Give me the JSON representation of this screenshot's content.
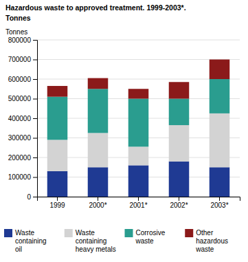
{
  "chart_data": {
    "type": "bar",
    "stacked": true,
    "title": "Hazardous waste to approved treatment. 1999-2003*.",
    "subtitle": "Tonnes",
    "ylabel": "Tonnes",
    "categories": [
      "1999",
      "2000*",
      "2001*",
      "2002*",
      "2003*"
    ],
    "series": [
      {
        "name": "Waste\ncontaining\noil",
        "color": "#1f3a93",
        "values": [
          130000,
          150000,
          160000,
          180000,
          150000
        ]
      },
      {
        "name": "Waste\ncontaining\nheavy metals",
        "color": "#d3d3d3",
        "values": [
          160000,
          175000,
          95000,
          185000,
          275000
        ]
      },
      {
        "name": "Corrosive\nwaste",
        "color": "#2a9d8f",
        "values": [
          220000,
          225000,
          245000,
          135000,
          175000
        ]
      },
      {
        "name": "Other\nhazardous\nwaste",
        "color": "#8b1a1a",
        "values": [
          55000,
          55000,
          50000,
          85000,
          100000
        ]
      }
    ],
    "ylim": [
      0,
      800000
    ],
    "yticks": [
      0,
      100000,
      200000,
      300000,
      400000,
      500000,
      600000,
      700000,
      800000
    ],
    "grid": true,
    "legend": "lower left"
  }
}
